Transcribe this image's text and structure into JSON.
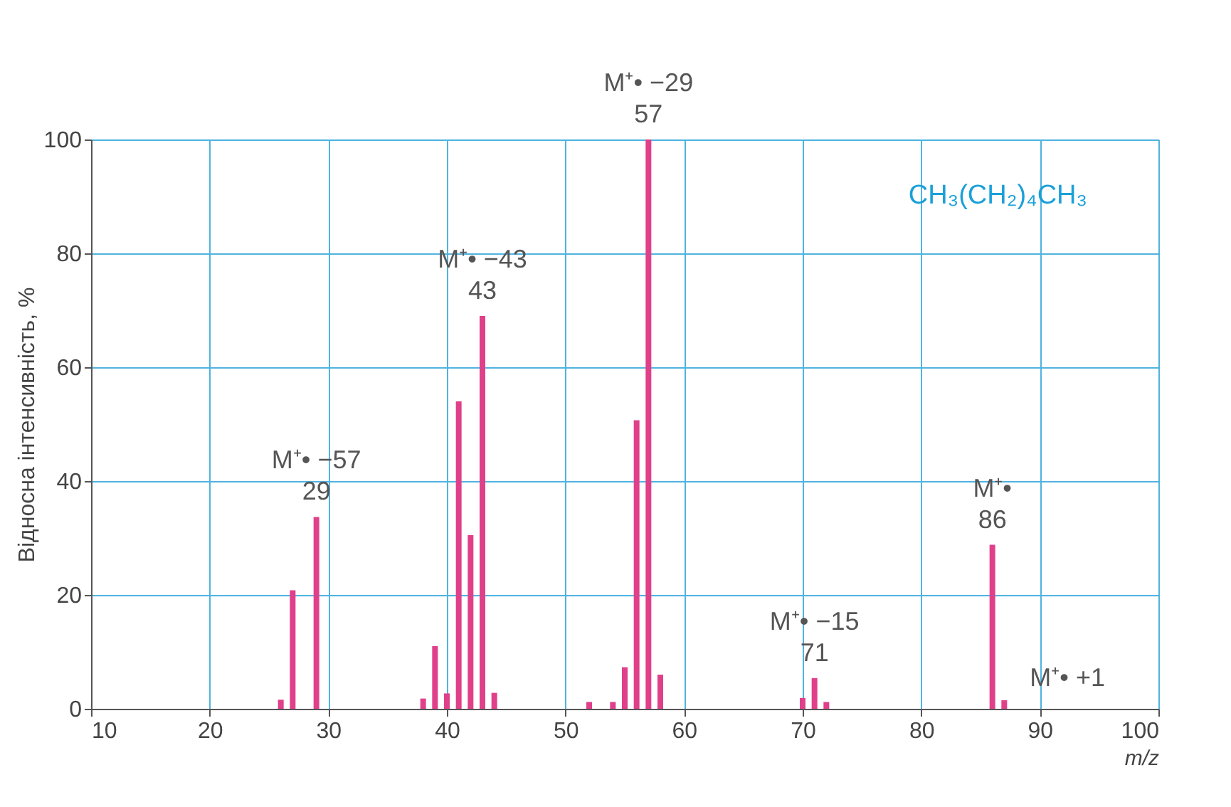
{
  "chart_data": {
    "type": "bar",
    "x": [
      26,
      27,
      29,
      38,
      39,
      40,
      41,
      42,
      43,
      44,
      52,
      54,
      55,
      56,
      57,
      58,
      70,
      71,
      72,
      86,
      87
    ],
    "values": [
      1.6,
      20.8,
      33.7,
      1.8,
      11,
      2.7,
      54,
      30.5,
      69,
      2.8,
      1.2,
      1.2,
      7.3,
      50.7,
      100,
      6,
      1.9,
      5.4,
      1.2,
      28.8,
      1.5
    ],
    "color": "#e0408a",
    "xlim": [
      10,
      100
    ],
    "xticks": [
      10,
      20,
      30,
      40,
      50,
      60,
      70,
      80,
      90,
      100
    ],
    "ylim": [
      0,
      100
    ],
    "yticks": [
      0,
      20,
      40,
      60,
      80,
      100
    ],
    "xlabel": "m/z",
    "ylabel": "Відносна інтенсивність, %",
    "grid": true,
    "annotations": [
      {
        "text": "M⁺• −57\n29",
        "x": 29,
        "y": 33.7
      },
      {
        "text": "M⁺• −43\n43",
        "x": 43,
        "y": 69
      },
      {
        "text": "M⁺• −29\n57",
        "x": 57,
        "y": 100
      },
      {
        "text": "M⁺• −15\n71",
        "x": 71,
        "y": 5.4
      },
      {
        "text": "M⁺•\n86",
        "x": 86,
        "y": 28.8
      },
      {
        "text": "M⁺• +1",
        "x": 87,
        "y": 1.5
      },
      "CH₃(CH₂)₄CH₃"
    ]
  }
}
